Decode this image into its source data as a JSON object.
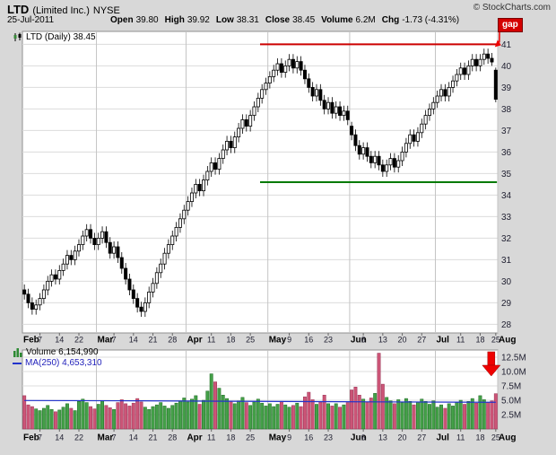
{
  "header": {
    "symbol": "LTD",
    "company": "(Limited Inc.)",
    "exchange": "NYSE",
    "copyright": "© StockCharts.com",
    "date": "25-Jul-2011",
    "quote": {
      "open": {
        "label": "Open",
        "value": "39.80"
      },
      "high": {
        "label": "High",
        "value": "39.92"
      },
      "low": {
        "label": "Low",
        "value": "38.31"
      },
      "close": {
        "label": "Close",
        "value": "38.45"
      },
      "volume": {
        "label": "Volume",
        "value": "6.2M"
      },
      "chg": {
        "label": "Chg",
        "value": "-1.73 (-4.31%)"
      }
    }
  },
  "legend": {
    "main": "LTD (Daily) 38.45",
    "volume": "Volume 6,154,990",
    "ma": "MA(250) 4,653,310"
  },
  "chart_data": {
    "type": "candlestick",
    "title": "LTD (Daily)",
    "last_close": 38.45,
    "price_axis": {
      "min": 27.6,
      "max": 41.6,
      "ticks": [
        41,
        40,
        39,
        38,
        37,
        36,
        35,
        34,
        33,
        32,
        31,
        30,
        29,
        28
      ]
    },
    "volume_axis": {
      "max": 13.75,
      "ticks": [
        {
          "label": "12.5M",
          "v": 12.5
        },
        {
          "label": "10.0M",
          "v": 10
        },
        {
          "label": "7.5M",
          "v": 7.5
        },
        {
          "label": "5.0M",
          "v": 5
        },
        {
          "label": "2.5M",
          "v": 2.5
        }
      ]
    },
    "xlabels": [
      [
        "Feb",
        0,
        1
      ],
      [
        "7",
        4,
        0
      ],
      [
        "14",
        9,
        0
      ],
      [
        "22",
        14,
        0
      ],
      [
        "Mar",
        19,
        1
      ],
      [
        "7",
        23,
        0
      ],
      [
        "14",
        28,
        0
      ],
      [
        "21",
        33,
        0
      ],
      [
        "28",
        38,
        0
      ],
      [
        "Apr",
        42,
        1
      ],
      [
        "11",
        48,
        0
      ],
      [
        "18",
        53,
        0
      ],
      [
        "25",
        58,
        0
      ],
      [
        "May",
        63,
        1
      ],
      [
        "9",
        68,
        0
      ],
      [
        "16",
        73,
        0
      ],
      [
        "23",
        78,
        0
      ],
      [
        "Jun",
        84,
        1
      ],
      [
        "6",
        87,
        0
      ],
      [
        "13",
        92,
        0
      ],
      [
        "20",
        97,
        0
      ],
      [
        "27",
        102,
        0
      ],
      [
        "Jul",
        106,
        1
      ],
      [
        "11",
        112,
        0
      ],
      [
        "18",
        117,
        0
      ],
      [
        "25",
        121,
        0
      ],
      [
        "Aug",
        122,
        1
      ]
    ],
    "month_gridlines_di": [
      19,
      42,
      63,
      84,
      106,
      122
    ],
    "candles": [
      [
        29.6,
        29.85,
        29.15,
        29.4
      ],
      [
        29.4,
        29.65,
        28.75,
        29.0
      ],
      [
        29.0,
        29.25,
        28.45,
        28.7
      ],
      [
        28.7,
        29.15,
        28.45,
        28.9
      ],
      [
        28.9,
        29.45,
        28.65,
        29.2
      ],
      [
        29.2,
        29.85,
        28.95,
        29.6
      ],
      [
        29.6,
        30.25,
        29.35,
        30.0
      ],
      [
        30.0,
        30.55,
        29.75,
        30.3
      ],
      [
        30.3,
        30.55,
        29.85,
        30.1
      ],
      [
        30.1,
        30.75,
        29.85,
        30.5
      ],
      [
        30.5,
        31.05,
        30.25,
        30.8
      ],
      [
        30.8,
        31.45,
        30.55,
        31.2
      ],
      [
        31.2,
        31.45,
        30.75,
        31.0
      ],
      [
        31.0,
        31.65,
        30.75,
        31.4
      ],
      [
        31.4,
        31.95,
        31.15,
        31.7
      ],
      [
        31.7,
        32.35,
        31.45,
        32.1
      ],
      [
        32.1,
        32.65,
        31.85,
        32.4
      ],
      [
        32.4,
        32.65,
        31.75,
        32.0
      ],
      [
        32.0,
        32.25,
        31.45,
        31.7
      ],
      [
        31.7,
        32.25,
        31.45,
        32.0
      ],
      [
        32.0,
        32.55,
        31.75,
        32.3
      ],
      [
        32.3,
        32.55,
        31.55,
        31.8
      ],
      [
        31.8,
        32.05,
        31.05,
        31.3
      ],
      [
        31.3,
        31.85,
        31.05,
        31.6
      ],
      [
        31.6,
        31.85,
        30.85,
        31.1
      ],
      [
        31.1,
        31.35,
        30.35,
        30.6
      ],
      [
        30.6,
        30.85,
        29.85,
        30.1
      ],
      [
        30.1,
        30.35,
        29.35,
        29.6
      ],
      [
        29.6,
        29.85,
        28.95,
        29.2
      ],
      [
        29.2,
        29.45,
        28.55,
        28.8
      ],
      [
        28.8,
        29.05,
        28.35,
        28.6
      ],
      [
        28.6,
        29.25,
        28.35,
        29.0
      ],
      [
        29.0,
        29.75,
        28.75,
        29.5
      ],
      [
        29.5,
        30.15,
        29.25,
        29.9
      ],
      [
        29.9,
        30.65,
        29.65,
        30.4
      ],
      [
        30.4,
        31.05,
        30.15,
        30.8
      ],
      [
        30.8,
        31.55,
        30.55,
        31.3
      ],
      [
        31.3,
        31.95,
        31.05,
        31.7
      ],
      [
        31.7,
        32.35,
        31.45,
        32.1
      ],
      [
        32.1,
        32.75,
        31.85,
        32.5
      ],
      [
        32.5,
        33.15,
        32.25,
        32.9
      ],
      [
        32.9,
        33.55,
        32.65,
        33.3
      ],
      [
        33.3,
        33.95,
        33.05,
        33.7
      ],
      [
        33.7,
        34.35,
        33.45,
        34.1
      ],
      [
        34.1,
        34.75,
        33.85,
        34.5
      ],
      [
        34.5,
        34.75,
        33.95,
        34.2
      ],
      [
        34.2,
        34.95,
        33.95,
        34.7
      ],
      [
        34.7,
        35.35,
        34.45,
        35.1
      ],
      [
        35.1,
        35.75,
        34.85,
        35.5
      ],
      [
        35.5,
        35.75,
        34.95,
        35.2
      ],
      [
        35.2,
        35.95,
        34.95,
        35.7
      ],
      [
        35.7,
        36.35,
        35.45,
        36.1
      ],
      [
        36.1,
        36.75,
        35.85,
        36.5
      ],
      [
        36.5,
        36.75,
        35.95,
        36.2
      ],
      [
        36.2,
        36.95,
        35.95,
        36.7
      ],
      [
        36.7,
        37.35,
        36.45,
        37.1
      ],
      [
        37.1,
        37.75,
        36.85,
        37.5
      ],
      [
        37.5,
        37.75,
        36.95,
        37.2
      ],
      [
        37.2,
        37.95,
        36.95,
        37.7
      ],
      [
        37.7,
        38.35,
        37.45,
        38.1
      ],
      [
        38.1,
        38.75,
        37.85,
        38.5
      ],
      [
        38.5,
        39.15,
        38.25,
        38.9
      ],
      [
        38.9,
        39.45,
        38.65,
        39.2
      ],
      [
        39.2,
        39.75,
        38.95,
        39.5
      ],
      [
        39.5,
        40.05,
        39.25,
        39.8
      ],
      [
        39.8,
        40.35,
        39.55,
        40.1
      ],
      [
        40.1,
        40.35,
        39.45,
        39.7
      ],
      [
        39.7,
        40.25,
        39.45,
        40.0
      ],
      [
        40.0,
        40.55,
        39.75,
        40.3
      ],
      [
        40.3,
        40.55,
        39.65,
        39.9
      ],
      [
        39.9,
        40.45,
        39.65,
        40.2
      ],
      [
        40.2,
        40.45,
        39.55,
        39.8
      ],
      [
        39.8,
        40.05,
        39.15,
        39.4
      ],
      [
        39.4,
        39.65,
        38.75,
        39.0
      ],
      [
        39.0,
        39.25,
        38.35,
        38.6
      ],
      [
        38.6,
        39.15,
        38.35,
        38.9
      ],
      [
        38.9,
        39.15,
        38.15,
        38.4
      ],
      [
        38.4,
        38.65,
        37.75,
        38.0
      ],
      [
        38.0,
        38.55,
        37.75,
        38.3
      ],
      [
        38.3,
        38.55,
        37.55,
        37.8
      ],
      [
        37.8,
        38.35,
        37.55,
        38.1
      ],
      [
        38.1,
        38.35,
        37.45,
        37.7
      ],
      [
        37.7,
        38.15,
        37.45,
        37.9
      ],
      [
        37.9,
        38.15,
        37.25,
        37.5
      ],
      [
        37.2,
        37.4,
        36.55,
        36.8
      ],
      [
        36.8,
        37.05,
        36.05,
        36.3
      ],
      [
        36.3,
        36.55,
        35.65,
        35.9
      ],
      [
        35.9,
        36.45,
        35.65,
        36.2
      ],
      [
        36.2,
        36.45,
        35.55,
        35.8
      ],
      [
        35.8,
        36.05,
        35.25,
        35.5
      ],
      [
        35.5,
        36.05,
        35.25,
        35.8
      ],
      [
        35.8,
        36.05,
        35.15,
        35.4
      ],
      [
        35.4,
        35.65,
        34.85,
        35.1
      ],
      [
        35.1,
        35.65,
        34.85,
        35.4
      ],
      [
        35.4,
        35.95,
        35.15,
        35.7
      ],
      [
        35.7,
        35.95,
        35.05,
        35.3
      ],
      [
        35.3,
        35.85,
        35.05,
        35.6
      ],
      [
        35.6,
        36.25,
        35.35,
        36.0
      ],
      [
        36.0,
        36.65,
        35.75,
        36.4
      ],
      [
        36.4,
        37.05,
        36.15,
        36.8
      ],
      [
        36.8,
        37.05,
        36.25,
        36.5
      ],
      [
        36.5,
        37.15,
        36.25,
        36.9
      ],
      [
        36.9,
        37.55,
        36.65,
        37.3
      ],
      [
        37.3,
        37.95,
        37.05,
        37.7
      ],
      [
        37.7,
        38.25,
        37.45,
        38.0
      ],
      [
        38.0,
        38.55,
        37.75,
        38.3
      ],
      [
        38.3,
        38.85,
        38.05,
        38.6
      ],
      [
        38.6,
        39.15,
        38.35,
        38.9
      ],
      [
        38.9,
        39.15,
        38.35,
        38.6
      ],
      [
        38.6,
        39.25,
        38.35,
        39.0
      ],
      [
        39.0,
        39.55,
        38.75,
        39.3
      ],
      [
        39.3,
        39.85,
        39.05,
        39.6
      ],
      [
        39.6,
        40.15,
        39.35,
        39.9
      ],
      [
        39.9,
        40.15,
        39.35,
        39.6
      ],
      [
        39.6,
        40.25,
        39.35,
        40.0
      ],
      [
        40.0,
        40.55,
        39.75,
        40.3
      ],
      [
        40.3,
        40.55,
        39.75,
        40.0
      ],
      [
        40.0,
        40.55,
        39.75,
        40.3
      ],
      [
        40.3,
        40.8,
        40.05,
        40.55
      ],
      [
        40.55,
        40.8,
        40.1,
        40.35
      ],
      [
        40.35,
        40.6,
        40.0,
        40.18
      ],
      [
        39.8,
        39.92,
        38.31,
        38.45
      ]
    ],
    "volumes": [
      5.8,
      4.2,
      3.9,
      3.5,
      3.2,
      3.6,
      4.1,
      3.4,
      3.0,
      3.3,
      3.8,
      4.4,
      3.6,
      3.2,
      4.8,
      5.2,
      4.6,
      3.9,
      3.5,
      4.3,
      4.9,
      4.1,
      3.7,
      3.4,
      4.6,
      5.1,
      4.4,
      4.0,
      4.5,
      5.3,
      4.7,
      3.8,
      3.4,
      3.9,
      4.2,
      4.6,
      4.0,
      3.6,
      4.1,
      4.5,
      4.9,
      5.4,
      4.7,
      5.2,
      5.8,
      4.3,
      5.0,
      6.6,
      9.6,
      8.2,
      7.1,
      5.9,
      5.3,
      4.8,
      4.4,
      4.9,
      5.5,
      4.6,
      4.1,
      4.7,
      5.2,
      4.5,
      4.0,
      4.4,
      3.9,
      4.3,
      4.8,
      4.2,
      3.8,
      4.1,
      4.5,
      3.9,
      5.6,
      6.4,
      5.1,
      4.3,
      4.7,
      5.9,
      4.4,
      4.0,
      4.4,
      3.8,
      4.2,
      4.6,
      6.8,
      7.3,
      5.9,
      5.2,
      4.7,
      5.4,
      6.2,
      13.2,
      7.8,
      5.5,
      4.9,
      4.4,
      5.1,
      4.6,
      5.3,
      4.8,
      4.2,
      4.7,
      5.2,
      4.8,
      4.3,
      4.9,
      3.8,
      4.2,
      3.6,
      4.4,
      4.0,
      4.6,
      5.0,
      4.3,
      4.8,
      5.3,
      4.5,
      5.8,
      5.1,
      4.6,
      4.9,
      6.15
    ],
    "ma250": [
      [
        0,
        4.95
      ],
      [
        30,
        4.9
      ],
      [
        60,
        4.8
      ],
      [
        90,
        4.72
      ],
      [
        121,
        4.65
      ]
    ],
    "annotations": {
      "resistance": {
        "price": 41.0,
        "di_from": 61,
        "di_to": 121.8,
        "color": "#cc0000"
      },
      "support": {
        "price": 34.6,
        "di_from": 61,
        "di_to": 121.8,
        "color": "#007a00"
      },
      "gap_label": "gap"
    },
    "colors": {
      "page_bg": "#d8d8d8",
      "plot_bg": "#ffffff",
      "grid": "#dcdcdc",
      "month_grid": "#c4c4c4",
      "axis_text": "#222233",
      "up_candle": "#ffffff",
      "down_candle": "#000000",
      "candle_outline": "#000000",
      "vol_up": "#44a048",
      "vol_up_dark": "#1e6b24",
      "vol_down": "#cc5577",
      "vol_down_dark": "#993355",
      "ma": "#2233cc",
      "arrow": "#ee0000"
    }
  }
}
